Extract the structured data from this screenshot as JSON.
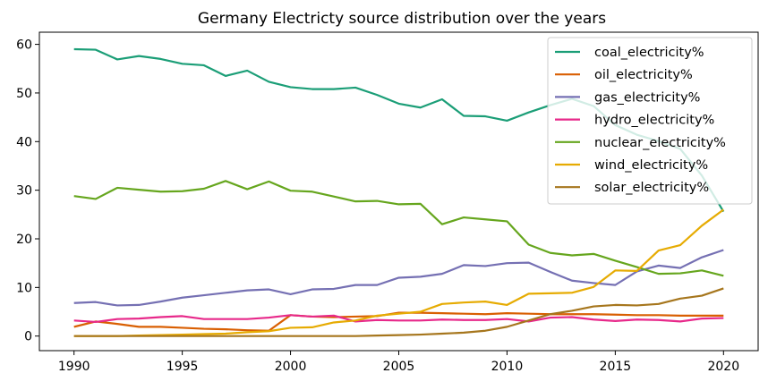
{
  "chart_data": {
    "type": "line",
    "title": "Germany Electricty source distribution over the years",
    "xlabel": "",
    "ylabel": "",
    "xlim": [
      1988.4,
      2021.6
    ],
    "ylim": [
      -3,
      62.5
    ],
    "x_ticks": [
      1990,
      1995,
      2000,
      2005,
      2010,
      2015,
      2020
    ],
    "y_ticks": [
      0,
      10,
      20,
      30,
      40,
      50,
      60
    ],
    "grid": false,
    "legend_position": "top-right",
    "x": [
      1990,
      1991,
      1992,
      1993,
      1994,
      1995,
      1996,
      1997,
      1998,
      1999,
      2000,
      2001,
      2002,
      2003,
      2004,
      2005,
      2006,
      2007,
      2008,
      2009,
      2010,
      2011,
      2012,
      2013,
      2014,
      2015,
      2016,
      2017,
      2018,
      2019,
      2020
    ],
    "series": [
      {
        "name": "coal_electricity%",
        "color": "#1b9e77",
        "values": [
          59.0,
          58.9,
          56.9,
          57.6,
          57.0,
          56.0,
          55.7,
          53.5,
          54.6,
          52.3,
          51.2,
          50.8,
          50.8,
          51.1,
          49.6,
          47.8,
          47.0,
          48.7,
          45.3,
          45.2,
          44.3,
          46.0,
          47.5,
          48.8,
          47.3,
          43.4,
          41.4,
          40.1,
          38.5,
          33.0,
          25.6
        ]
      },
      {
        "name": "oil_electricity%",
        "color": "#d95f02",
        "values": [
          1.9,
          3.0,
          2.5,
          1.9,
          1.9,
          1.7,
          1.5,
          1.4,
          1.2,
          1.1,
          4.3,
          4.0,
          3.9,
          4.0,
          4.1,
          4.8,
          4.8,
          4.7,
          4.6,
          4.5,
          4.7,
          4.6,
          4.5,
          4.5,
          4.5,
          4.4,
          4.3,
          4.3,
          4.2,
          4.2,
          4.2
        ]
      },
      {
        "name": "gas_electricity%",
        "color": "#7570b3",
        "values": [
          6.8,
          7.0,
          6.3,
          6.4,
          7.1,
          7.9,
          8.4,
          8.9,
          9.4,
          9.6,
          8.6,
          9.6,
          9.7,
          10.5,
          10.5,
          12.0,
          12.2,
          12.8,
          14.6,
          14.4,
          15.0,
          15.1,
          13.2,
          11.4,
          10.9,
          10.5,
          13.3,
          14.5,
          14.0,
          16.2,
          17.7
        ]
      },
      {
        "name": "hydro_electricity%",
        "color": "#e7298a",
        "values": [
          3.2,
          2.9,
          3.5,
          3.6,
          3.9,
          4.1,
          3.5,
          3.5,
          3.5,
          3.8,
          4.3,
          4.0,
          4.2,
          3.0,
          3.3,
          3.2,
          3.2,
          3.4,
          3.3,
          3.3,
          3.5,
          3.0,
          3.8,
          3.9,
          3.4,
          3.1,
          3.4,
          3.3,
          3.0,
          3.6,
          3.7
        ]
      },
      {
        "name": "nuclear_electricity%",
        "color": "#66a61e",
        "values": [
          28.8,
          28.2,
          30.5,
          30.1,
          29.7,
          29.8,
          30.3,
          31.9,
          30.2,
          31.8,
          29.9,
          29.7,
          28.7,
          27.7,
          27.8,
          27.1,
          27.2,
          23.0,
          24.4,
          24.0,
          23.6,
          18.8,
          17.1,
          16.6,
          16.9,
          15.5,
          14.2,
          12.8,
          12.9,
          13.5,
          12.4
        ]
      },
      {
        "name": "wind_electricity%",
        "color": "#e6ab02",
        "values": [
          0.0,
          0.0,
          0.0,
          0.1,
          0.2,
          0.3,
          0.4,
          0.5,
          0.8,
          1.0,
          1.7,
          1.8,
          2.8,
          3.2,
          4.2,
          4.6,
          5.0,
          6.6,
          6.9,
          7.1,
          6.4,
          8.7,
          8.8,
          8.9,
          10.1,
          13.5,
          13.4,
          17.6,
          18.7,
          22.7,
          26.0
        ]
      },
      {
        "name": "solar_electricity%",
        "color": "#a6761d",
        "values": [
          0.0,
          0.0,
          0.0,
          0.0,
          0.0,
          0.0,
          0.0,
          0.0,
          0.0,
          0.0,
          0.0,
          0.0,
          0.0,
          0.0,
          0.1,
          0.2,
          0.3,
          0.5,
          0.7,
          1.1,
          1.9,
          3.2,
          4.5,
          5.2,
          6.1,
          6.4,
          6.3,
          6.6,
          7.7,
          8.3,
          9.8
        ]
      }
    ]
  }
}
